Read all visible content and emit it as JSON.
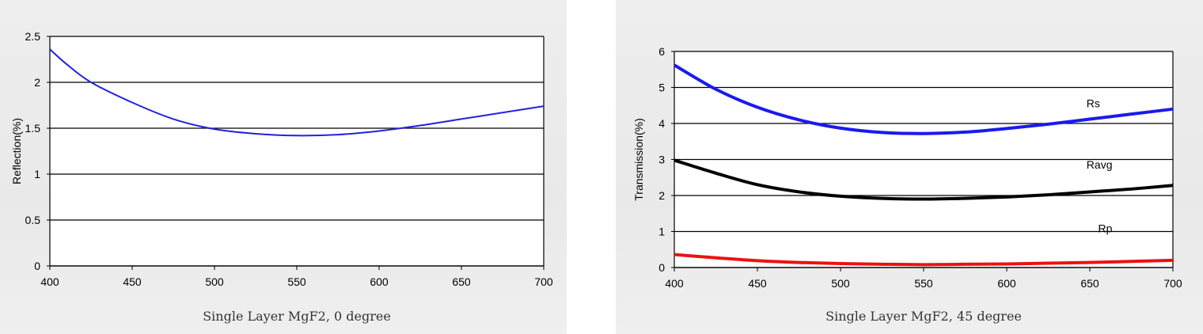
{
  "chart_data": [
    {
      "type": "line",
      "title": "",
      "caption": "Single Layer MgF2, 0 degree",
      "xlabel": "",
      "ylabel": "Reflection(%)",
      "xlim": [
        400,
        700
      ],
      "ylim": [
        0,
        2.5
      ],
      "xticks": [
        "400",
        "450",
        "500",
        "550",
        "600",
        "650",
        "700"
      ],
      "yticks": [
        "0",
        "0.5",
        "1",
        "1.5",
        "2",
        "2.5"
      ],
      "grid": "horizontal",
      "series": [
        {
          "color": "#2222dd",
          "x": [
            400,
            410,
            425,
            450,
            475,
            500,
            525,
            550,
            575,
            600,
            625,
            650,
            675,
            700
          ],
          "y": [
            2.36,
            2.2,
            2.0,
            1.78,
            1.6,
            1.49,
            1.44,
            1.42,
            1.43,
            1.47,
            1.53,
            1.6,
            1.67,
            1.74
          ]
        }
      ]
    },
    {
      "type": "line",
      "title": "",
      "caption": "Single Layer MgF2, 45 degree",
      "xlabel": "",
      "ylabel": "Transmission(%)",
      "xlim": [
        400,
        700
      ],
      "ylim": [
        0,
        6
      ],
      "xticks": [
        "400",
        "450",
        "500",
        "550",
        "600",
        "650",
        "700"
      ],
      "yticks": [
        "0",
        "1",
        "2",
        "3",
        "4",
        "5",
        "6"
      ],
      "grid": "horizontal",
      "series": [
        {
          "name": "Rs",
          "color": "#1a1aee",
          "label_at": [
            648,
            4.45
          ],
          "x": [
            400,
            425,
            450,
            475,
            500,
            525,
            550,
            575,
            600,
            625,
            650,
            675,
            700
          ],
          "y": [
            5.62,
            4.95,
            4.45,
            4.1,
            3.87,
            3.75,
            3.72,
            3.76,
            3.86,
            3.98,
            4.12,
            4.26,
            4.4
          ]
        },
        {
          "name": "Ravg",
          "color": "#000000",
          "label_at": [
            648,
            2.75
          ],
          "x": [
            400,
            425,
            450,
            475,
            500,
            525,
            550,
            575,
            600,
            625,
            650,
            675,
            700
          ],
          "y": [
            2.98,
            2.62,
            2.3,
            2.1,
            1.98,
            1.92,
            1.9,
            1.92,
            1.96,
            2.02,
            2.1,
            2.18,
            2.28
          ]
        },
        {
          "name": "Rp",
          "color": "#ee1111",
          "label_at": [
            655,
            0.98
          ],
          "x": [
            400,
            425,
            450,
            475,
            500,
            525,
            550,
            575,
            600,
            625,
            650,
            675,
            700
          ],
          "y": [
            0.36,
            0.27,
            0.19,
            0.14,
            0.11,
            0.09,
            0.08,
            0.09,
            0.1,
            0.12,
            0.14,
            0.17,
            0.2
          ]
        }
      ]
    }
  ]
}
